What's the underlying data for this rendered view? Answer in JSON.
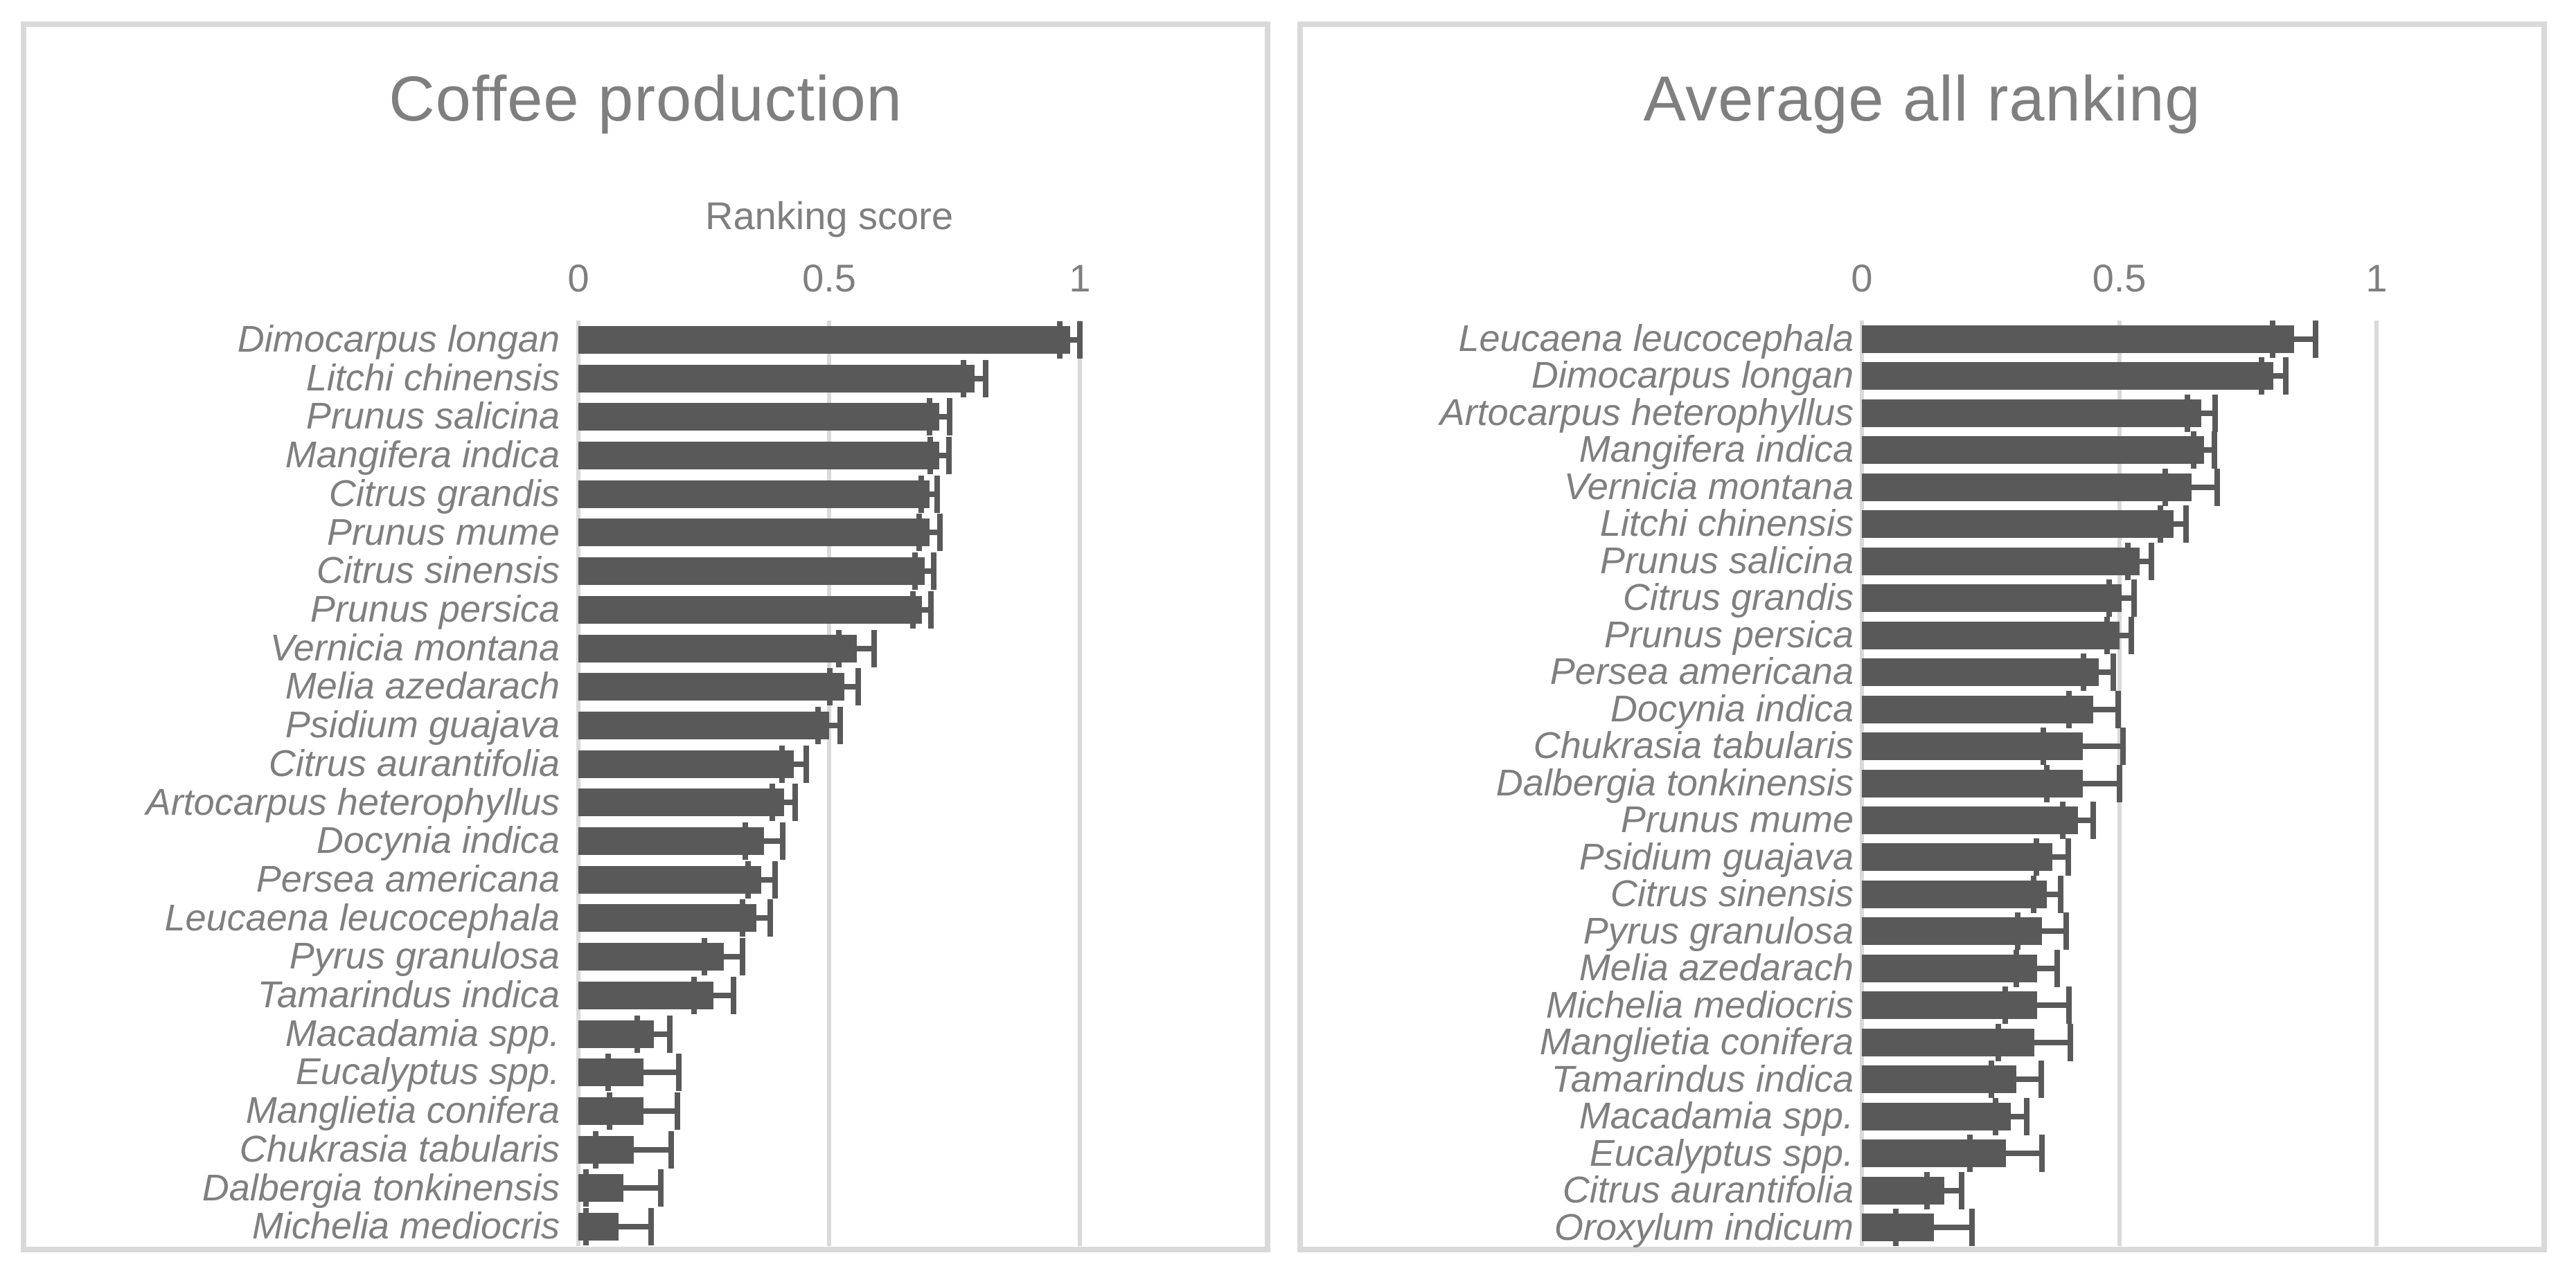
{
  "colors": {
    "bar": "#595959",
    "error_bar": "#595959",
    "gridline": "#d9d9d9",
    "panel_border": "#d9d9d9",
    "text": "#7f7f7f",
    "background": "#ffffff"
  },
  "chart_data": [
    {
      "type": "bar",
      "orientation": "horizontal",
      "title": "Coffee production",
      "xlabel": "Ranking score",
      "xlim": [
        0,
        1.1
      ],
      "xticks": [
        0,
        0.5,
        1
      ],
      "xtick_labels": [
        "0",
        "0.5",
        "1"
      ],
      "grid": true,
      "legend": "none",
      "error_bars": "symmetric",
      "categories": [
        "Dimocarpus longan",
        "Litchi chinensis",
        "Prunus salicina",
        "Mangifera indica",
        "Citrus grandis",
        "Prunus mume",
        "Citrus sinensis",
        "Prunus persica",
        "Vernicia montana",
        "Melia azedarach",
        "Psidium guajava",
        "Citrus aurantifolia",
        "Artocarpus heterophyllus",
        "Docynia indica",
        "Persea americana",
        "Leucaena leucocephala",
        "Pyrus granulosa",
        "Tamarindus indica",
        "Macadamia spp.",
        "Eucalyptus spp.",
        "Manglietia conifera",
        "Chukrasia tabularis",
        "Dalbergia tonkinensis",
        "Michelia mediocris"
      ],
      "values": [
        0.98,
        0.79,
        0.72,
        0.72,
        0.7,
        0.7,
        0.69,
        0.685,
        0.555,
        0.53,
        0.5,
        0.43,
        0.41,
        0.37,
        0.365,
        0.355,
        0.29,
        0.27,
        0.15,
        0.13,
        0.13,
        0.11,
        0.09,
        0.08
      ],
      "errors": [
        0.02,
        0.022,
        0.02,
        0.019,
        0.016,
        0.021,
        0.019,
        0.018,
        0.035,
        0.028,
        0.022,
        0.024,
        0.023,
        0.037,
        0.027,
        0.028,
        0.038,
        0.04,
        0.033,
        0.07,
        0.068,
        0.075,
        0.075,
        0.065
      ]
    },
    {
      "type": "bar",
      "orientation": "horizontal",
      "title": "Average all ranking",
      "xlabel": "",
      "xlim": [
        0,
        1.1
      ],
      "xticks": [
        0,
        0.5,
        1
      ],
      "xtick_labels": [
        "0",
        "0.5",
        "1"
      ],
      "grid": true,
      "legend": "none",
      "error_bars": "symmetric",
      "categories": [
        "Leucaena leucocephala",
        "Dimocarpus longan",
        "Artocarpus heterophyllus",
        "Mangifera indica",
        "Vernicia montana",
        "Litchi chinensis",
        "Prunus salicina",
        "Citrus grandis",
        "Prunus persica",
        "Persea americana",
        "Docynia indica",
        "Chukrasia tabularis",
        "Dalbergia tonkinensis",
        "Prunus mume",
        "Psidium guajava",
        "Citrus sinensis",
        "Pyrus granulosa",
        "Melia azedarach",
        "Michelia mediocris",
        "Manglietia conifera",
        "Tamarindus indica",
        "Macadamia spp.",
        "Eucalyptus spp.",
        "Citrus aurantifolia",
        "Oroxylum indicum"
      ],
      "values": [
        0.84,
        0.8,
        0.66,
        0.665,
        0.64,
        0.605,
        0.54,
        0.505,
        0.5,
        0.46,
        0.45,
        0.43,
        0.43,
        0.42,
        0.37,
        0.36,
        0.35,
        0.34,
        0.34,
        0.335,
        0.3,
        0.29,
        0.28,
        0.16,
        0.14
      ],
      "errors": [
        0.042,
        0.024,
        0.027,
        0.02,
        0.05,
        0.025,
        0.023,
        0.024,
        0.023,
        0.029,
        0.048,
        0.078,
        0.07,
        0.03,
        0.031,
        0.026,
        0.047,
        0.04,
        0.062,
        0.07,
        0.048,
        0.03,
        0.07,
        0.034,
        0.074
      ]
    }
  ]
}
